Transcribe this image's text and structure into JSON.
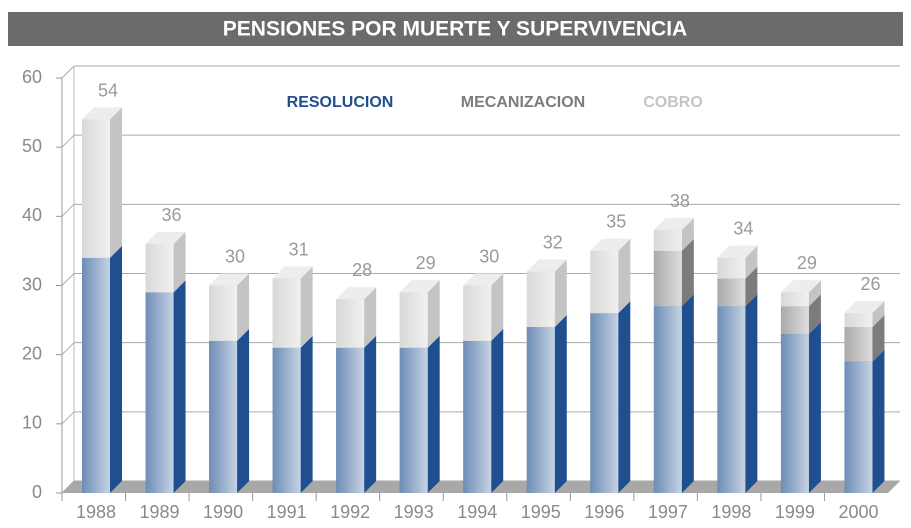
{
  "chart_data": {
    "type": "bar",
    "stacked": true,
    "title": "PENSIONES POR MUERTE Y SUPERVIVENCIA",
    "categories": [
      "1988",
      "1989",
      "1990",
      "1991",
      "1992",
      "1993",
      "1994",
      "1995",
      "1996",
      "1997",
      "1998",
      "1999",
      "2000"
    ],
    "series": [
      {
        "name": "RESOLUCION",
        "color": "#1f4f8f",
        "values": [
          34,
          29,
          22,
          21,
          21,
          21,
          22,
          24,
          26,
          27,
          27,
          23,
          19
        ]
      },
      {
        "name": "MECANIZACION",
        "color": "#7c7c7c",
        "values": [
          0,
          0,
          0,
          0,
          0,
          0,
          0,
          0,
          0,
          8,
          4,
          4,
          5
        ]
      },
      {
        "name": "COBRO",
        "color": "#c4c4c4",
        "values": [
          20,
          7,
          8,
          10,
          7,
          8,
          8,
          8,
          9,
          3,
          3,
          2,
          2
        ]
      }
    ],
    "totals": [
      54,
      36,
      30,
      31,
      28,
      29,
      30,
      32,
      35,
      38,
      34,
      29,
      26
    ],
    "ylim": [
      0,
      60
    ],
    "yticks": [
      0,
      10,
      20,
      30,
      40,
      50,
      60
    ],
    "grid": true
  }
}
